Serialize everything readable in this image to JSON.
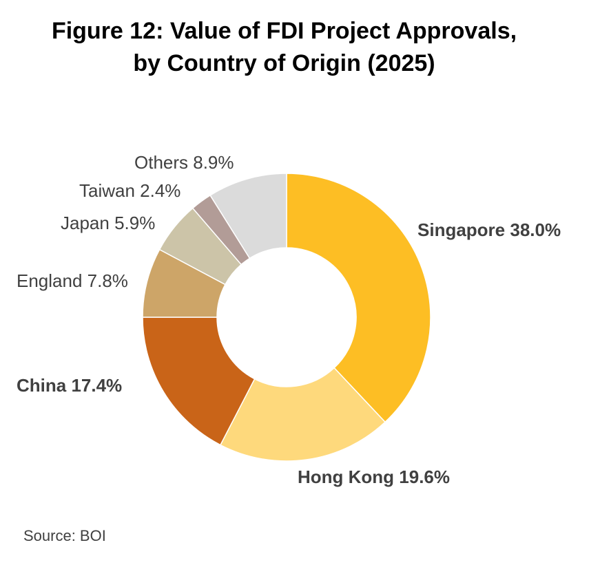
{
  "chart_data": {
    "type": "pie",
    "subtype": "doughnut",
    "title": "Figure 12: Value of FDI Project Approvals,",
    "subtitle": "by Country of Origin (2025)",
    "categories": [
      "Singapore",
      "Hong Kong",
      "China",
      "England",
      "Japan",
      "Taiwan",
      "Others"
    ],
    "values": [
      38.0,
      19.6,
      17.4,
      7.8,
      5.9,
      2.4,
      8.9
    ],
    "labels": [
      "Singapore 38.0%",
      "Hong Kong 19.6%",
      "China 17.4%",
      "England 7.8%",
      "Japan 5.9%",
      "Taiwan 2.4%",
      "Others 8.9%"
    ],
    "colors": [
      "#FDBE24",
      "#FED97C",
      "#C96418",
      "#CDA568",
      "#CCC4A8",
      "#B29C97",
      "#DBDBDB"
    ],
    "emphasized": [
      "Singapore",
      "Hong Kong",
      "China"
    ],
    "legend": "none (labels beside slices)"
  },
  "source": "Source: BOI"
}
